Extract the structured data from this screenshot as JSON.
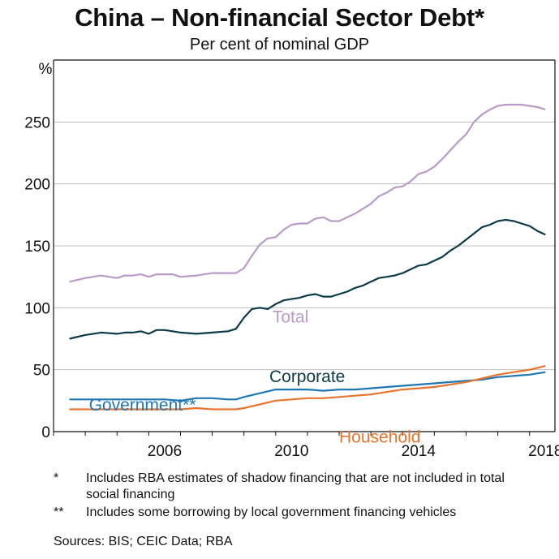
{
  "chart_data": {
    "type": "line",
    "title": "China – Non-financial Sector Debt*",
    "subtitle": "Per cent of nominal GDP",
    "ylabel": "%",
    "ylim": [
      0,
      300
    ],
    "yticks": [
      0,
      50,
      100,
      150,
      200,
      250
    ],
    "xlim": [
      2003.0,
      2018.8
    ],
    "xticks": [
      2006,
      2010,
      2014,
      2018
    ],
    "grid": true,
    "legend": "inline labels",
    "series": [
      {
        "name": "Total",
        "color": "#b99bc9",
        "x": [
          2003.5,
          2004.0,
          2004.5,
          2005.0,
          2005.25,
          2005.5,
          2005.75,
          2006.0,
          2006.25,
          2006.5,
          2006.75,
          2007.0,
          2007.5,
          2008.0,
          2008.5,
          2008.75,
          2009.0,
          2009.25,
          2009.5,
          2009.75,
          2010.0,
          2010.25,
          2010.5,
          2010.75,
          2011.0,
          2011.25,
          2011.5,
          2011.75,
          2012.0,
          2012.25,
          2012.5,
          2012.75,
          2013.0,
          2013.25,
          2013.5,
          2013.75,
          2014.0,
          2014.25,
          2014.5,
          2014.75,
          2015.0,
          2015.25,
          2015.5,
          2015.75,
          2016.0,
          2016.25,
          2016.5,
          2016.75,
          2017.0,
          2017.25,
          2017.5,
          2017.75,
          2018.0,
          2018.25,
          2018.5
        ],
        "values": [
          121,
          124,
          126,
          124,
          126,
          126,
          127,
          125,
          127,
          127,
          127,
          125,
          126,
          128,
          128,
          128,
          132,
          142,
          151,
          156,
          157,
          163,
          167,
          168,
          168,
          172,
          173,
          170,
          170,
          173,
          176,
          180,
          184,
          190,
          193,
          197,
          198,
          202,
          208,
          210,
          214,
          220,
          227,
          234,
          240,
          250,
          256,
          260,
          263,
          264,
          264,
          264,
          263,
          262,
          260
        ]
      },
      {
        "name": "Corporate",
        "color": "#0c3b48",
        "x": [
          2003.5,
          2004.0,
          2004.5,
          2005.0,
          2005.25,
          2005.5,
          2005.75,
          2006.0,
          2006.25,
          2006.5,
          2006.75,
          2007.0,
          2007.5,
          2008.0,
          2008.5,
          2008.75,
          2009.0,
          2009.25,
          2009.5,
          2009.75,
          2010.0,
          2010.25,
          2010.5,
          2010.75,
          2011.0,
          2011.25,
          2011.5,
          2011.75,
          2012.0,
          2012.25,
          2012.5,
          2012.75,
          2013.0,
          2013.25,
          2013.5,
          2013.75,
          2014.0,
          2014.25,
          2014.5,
          2014.75,
          2015.0,
          2015.25,
          2015.5,
          2015.75,
          2016.0,
          2016.25,
          2016.5,
          2016.75,
          2017.0,
          2017.25,
          2017.5,
          2017.75,
          2018.0,
          2018.25,
          2018.5
        ],
        "values": [
          75,
          78,
          80,
          79,
          80,
          80,
          81,
          79,
          82,
          82,
          81,
          80,
          79,
          80,
          81,
          83,
          92,
          99,
          100,
          99,
          103,
          106,
          107,
          108,
          110,
          111,
          109,
          109,
          111,
          113,
          116,
          118,
          121,
          124,
          125,
          126,
          128,
          131,
          134,
          135,
          138,
          141,
          146,
          150,
          155,
          160,
          165,
          167,
          170,
          171,
          170,
          168,
          166,
          162,
          159
        ]
      },
      {
        "name": "Government**",
        "color": "#1f77b4",
        "x": [
          2003.5,
          2004.0,
          2005.0,
          2006.0,
          2006.5,
          2007.0,
          2007.5,
          2008.0,
          2008.5,
          2008.75,
          2009.0,
          2009.5,
          2010.0,
          2010.5,
          2011.0,
          2011.5,
          2012.0,
          2012.5,
          2013.0,
          2013.5,
          2014.0,
          2014.5,
          2015.0,
          2015.5,
          2016.0,
          2016.5,
          2017.0,
          2017.5,
          2018.0,
          2018.5
        ],
        "values": [
          26,
          26,
          26,
          26,
          26,
          25,
          27,
          27,
          26,
          26,
          28,
          31,
          34,
          34,
          34,
          33,
          34,
          34,
          35,
          36,
          37,
          38,
          39,
          40,
          41,
          42,
          44,
          45,
          46,
          48
        ]
      },
      {
        "name": "Household",
        "color": "#e8742f",
        "x": [
          2003.5,
          2004.0,
          2005.0,
          2006.0,
          2006.5,
          2007.0,
          2007.5,
          2008.0,
          2008.5,
          2008.75,
          2009.0,
          2009.5,
          2010.0,
          2010.5,
          2011.0,
          2011.5,
          2012.0,
          2012.5,
          2013.0,
          2013.5,
          2014.0,
          2014.5,
          2015.0,
          2015.5,
          2016.0,
          2016.5,
          2017.0,
          2017.5,
          2018.0,
          2018.5
        ],
        "values": [
          18,
          18,
          18,
          18,
          18,
          18,
          19,
          18,
          18,
          18,
          19,
          22,
          25,
          26,
          27,
          27,
          28,
          29,
          30,
          32,
          34,
          35,
          36,
          38,
          40,
          43,
          46,
          48,
          50,
          53
        ]
      }
    ],
    "series_labels": [
      "Total",
      "Corporate",
      "Government**",
      "Household"
    ]
  },
  "notes": [
    {
      "mark": "*",
      "text": "Includes RBA estimates of shadow financing that are not included in total social financing"
    },
    {
      "mark": "**",
      "text": "Includes some borrowing by local government financing vehicles"
    }
  ],
  "sources": "Sources: BIS; CEIC Data; RBA"
}
